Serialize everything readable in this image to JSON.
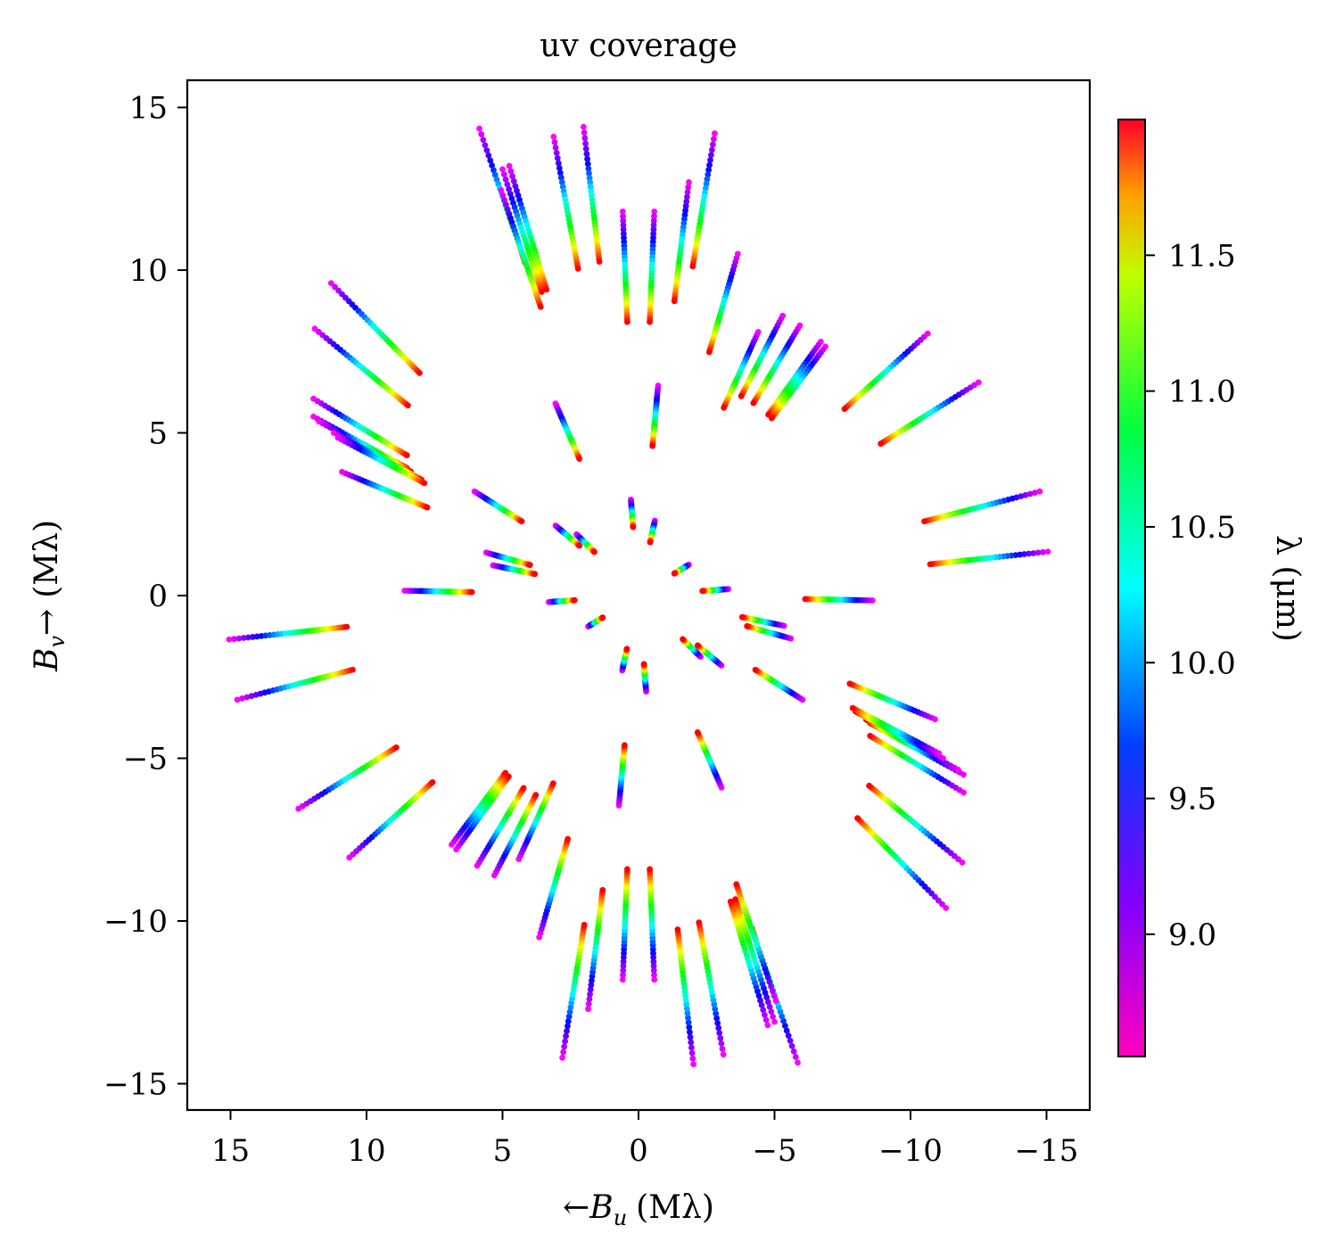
{
  "chart_data": {
    "type": "scatter",
    "title": "uv coverage",
    "xlabel_prefix": "←",
    "xlabel_var": "B",
    "xlabel_sub": "u",
    "xlabel_unit": "(Mλ)",
    "ylabel_var": "B",
    "ylabel_sub": "v",
    "ylabel_arrow": "→",
    "ylabel_unit": "(Mλ)",
    "xlim": [
      16.5,
      -16.5
    ],
    "ylim": [
      -15.8,
      15.8
    ],
    "x_inverted": true,
    "xticks": [
      15,
      10,
      5,
      0,
      -5,
      -10,
      -15
    ],
    "xtick_labels": [
      "15",
      "10",
      "5",
      "0",
      "−5",
      "−10",
      "−15"
    ],
    "yticks": [
      15,
      10,
      5,
      0,
      -5,
      -10,
      -15
    ],
    "ytick_labels": [
      "15",
      "10",
      "5",
      "0",
      "−5",
      "−10",
      "−15"
    ],
    "colorbar": {
      "label": "λ (μm)",
      "colormap": "gist_rainbow (reversed)",
      "range": [
        8.55,
        12.0
      ],
      "ticks": [
        9.0,
        9.5,
        10.0,
        10.5,
        11.0,
        11.5
      ],
      "tick_labels": [
        "9.0",
        "9.5",
        "10.0",
        "10.5",
        "11.0",
        "11.5"
      ]
    },
    "wavelength_range_um": [
      8.55,
      12.0
    ],
    "note_tracks": "Each track: points spanning the wavelength range; [u_at_shortest_lambda, v_at_shortest_lambda]. Conjugate (-u,-v) tracks are also plotted.",
    "tracks": [
      [
        5.85,
        14.35
      ],
      [
        5.0,
        13.1
      ],
      [
        4.75,
        13.2
      ],
      [
        5.05,
        12.45
      ],
      [
        3.12,
        14.1
      ],
      [
        2.02,
        14.4
      ],
      [
        -2.8,
        14.2
      ],
      [
        0.58,
        11.8
      ],
      [
        -0.58,
        11.8
      ],
      [
        -1.85,
        12.7
      ],
      [
        -3.65,
        10.5
      ],
      [
        -4.4,
        8.1
      ],
      [
        -5.3,
        8.6
      ],
      [
        -5.93,
        8.3
      ],
      [
        -6.7,
        7.8
      ],
      [
        -6.87,
        7.65
      ],
      [
        -10.63,
        8.05
      ],
      [
        -12.5,
        6.55
      ],
      [
        11.3,
        9.6
      ],
      [
        11.9,
        8.2
      ],
      [
        11.95,
        6.05
      ],
      [
        11.95,
        5.5
      ],
      [
        11.75,
        5.35
      ],
      [
        11.2,
        5.0
      ],
      [
        11.05,
        4.85
      ],
      [
        10.9,
        3.8
      ],
      [
        3.05,
        5.9
      ],
      [
        -0.72,
        6.45
      ],
      [
        6.03,
        3.2
      ],
      [
        -14.75,
        3.2
      ],
      [
        -15.05,
        1.35
      ],
      [
        5.6,
        1.32
      ],
      [
        5.35,
        0.93
      ],
      [
        8.6,
        0.15
      ],
      [
        0.28,
        2.95
      ],
      [
        -0.6,
        2.3
      ],
      [
        -1.85,
        0.95
      ],
      [
        -3.3,
        0.2
      ],
      [
        3.05,
        2.15
      ],
      [
        2.28,
        1.88
      ]
    ]
  }
}
